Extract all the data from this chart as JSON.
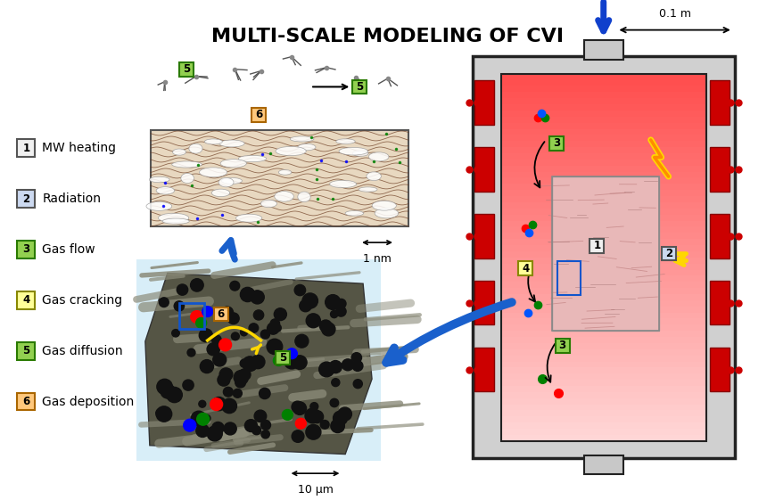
{
  "title": "MULTI-SCALE MODELING OF CVI",
  "title_fontsize": 16,
  "background_color": "#ffffff",
  "legend_items": [
    {
      "num": "1",
      "label": "MW heating",
      "bg": "#f0f0f0",
      "border": "#555555"
    },
    {
      "num": "2",
      "label": "Radiation",
      "bg": "#ccd9f0",
      "border": "#555555"
    },
    {
      "num": "3",
      "label": "Gas flow",
      "bg": "#92d050",
      "border": "#2a7a00"
    },
    {
      "num": "4",
      "label": "Gas cracking",
      "bg": "#ffff99",
      "border": "#888800"
    },
    {
      "num": "5",
      "label": "Gas diffusion",
      "bg": "#92d050",
      "border": "#2a7a00"
    },
    {
      "num": "6",
      "label": "Gas deposition",
      "bg": "#ffc87c",
      "border": "#aa6600"
    }
  ]
}
